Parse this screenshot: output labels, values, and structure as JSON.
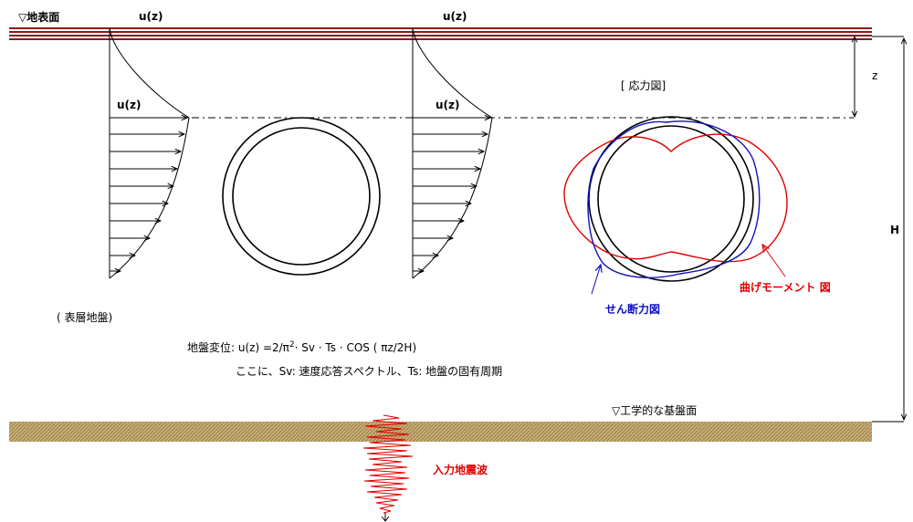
{
  "labels": {
    "ground_surface": "▽地表面",
    "u_top_1": "u(z)",
    "u_top_2": "u(z)",
    "u_mid_1": "u(z)",
    "u_mid_2": "u(z)",
    "stress_diagram": "[ 応力図]",
    "z": "z",
    "H": "H",
    "surface_layer": "( 表層地盤)",
    "formula_prefix": "地盤変位: u(z) =2/π",
    "formula_sup": "2",
    "formula_suffix": "· Sv · Ts · COS ( πz/2H)",
    "where_line": "ここに、Sv: 速度応答スペクトル、Ts: 地盤の固有周期",
    "bedrock": "▽工学的な基盤面",
    "input_wave": "入力地震波",
    "shear_force": "せん断力図",
    "bending_moment": "曲げモーメント 図"
  },
  "colors": {
    "surface_band": "#8b1a1a",
    "bedrock_band": "#c8ae78",
    "red": "#e00000",
    "blue": "#1010c0",
    "black": "#000000"
  }
}
